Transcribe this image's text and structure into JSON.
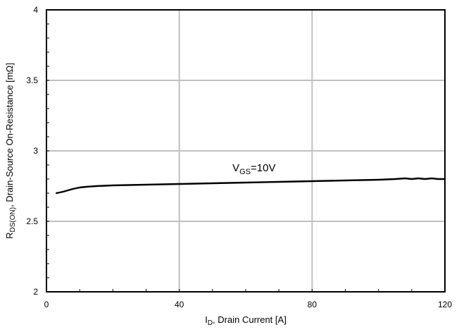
{
  "chart_data": {
    "type": "line",
    "xlabel": {
      "main": "I",
      "sub": "D",
      "rest": ", Drain Current [A]"
    },
    "ylabel": {
      "main": "R",
      "sub": "DS(ON)",
      "rest": ", Drain-Source On-Resistance [mΩ]"
    },
    "xlim": [
      0,
      120
    ],
    "ylim": [
      2,
      4
    ],
    "xticks": [
      0,
      40,
      80,
      120
    ],
    "yticks": [
      2,
      2.5,
      3,
      3.5,
      4
    ],
    "x_tick_labels": [
      "0",
      "40",
      "80",
      "120"
    ],
    "y_tick_labels": [
      "2",
      "2.5",
      "3",
      "3.5",
      "4"
    ],
    "grid": true,
    "series": [
      {
        "annotation": {
          "main": "V",
          "sub": "GS",
          "rest": "=10V"
        },
        "x": [
          3,
          5,
          8,
          10,
          12,
          15,
          20,
          30,
          40,
          50,
          60,
          70,
          80,
          90,
          100,
          105,
          108,
          110,
          112,
          114,
          116,
          118,
          120
        ],
        "y": [
          2.7,
          2.71,
          2.73,
          2.74,
          2.745,
          2.75,
          2.755,
          2.76,
          2.765,
          2.77,
          2.775,
          2.78,
          2.785,
          2.79,
          2.795,
          2.8,
          2.805,
          2.8,
          2.805,
          2.8,
          2.805,
          2.8,
          2.8
        ]
      }
    ],
    "annotation_at": {
      "x": 56,
      "y": 2.855
    },
    "colors": {
      "line": "#000000",
      "grid": "#c0c0c0",
      "frame": "#000000"
    }
  }
}
